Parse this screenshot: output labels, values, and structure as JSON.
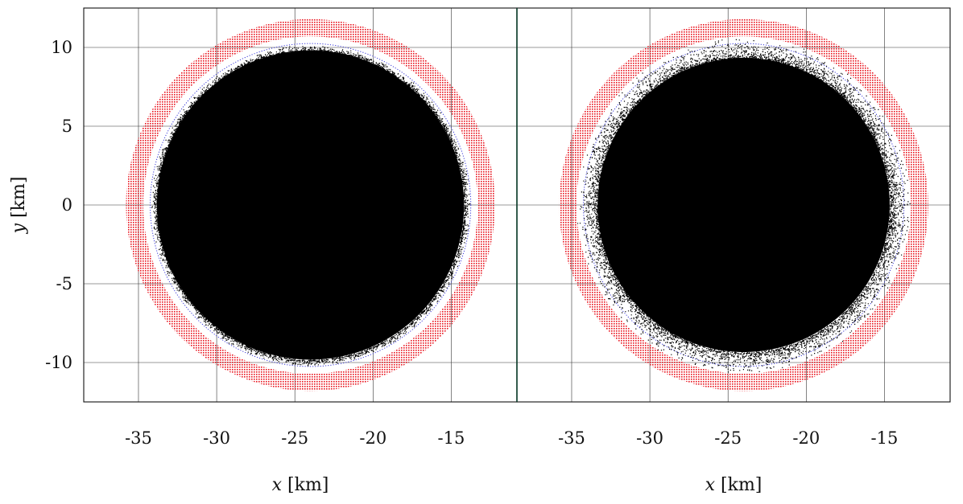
{
  "chart_data": [
    {
      "type": "scatter",
      "panel": "left",
      "xlabel_var": "x",
      "xlabel_unit": "[km]",
      "ylabel_var": "y",
      "ylabel_unit": "[km]",
      "xlim": [
        -38.5,
        -10.8
      ],
      "ylim": [
        -12.5,
        12.5
      ],
      "x_ticks": [
        {
          "value": -35,
          "label": "-35"
        },
        {
          "value": -30,
          "label": "-30"
        },
        {
          "value": -25,
          "label": "-25"
        },
        {
          "value": -20,
          "label": "-20"
        },
        {
          "value": -15,
          "label": "-15"
        }
      ],
      "y_ticks": [
        {
          "value": 10,
          "label": "10"
        },
        {
          "value": 5,
          "label": "5"
        },
        {
          "value": 0,
          "label": "0"
        },
        {
          "value": -5,
          "label": "-5"
        },
        {
          "value": -10,
          "label": "-10"
        }
      ],
      "grid": true,
      "series": [
        {
          "kind": "annulus",
          "color": "#e8141e",
          "center": [
            -24,
            0
          ],
          "inner_radius": 10.7,
          "outer_radius": 11.8
        },
        {
          "kind": "circle-dotted",
          "color": "#3a3ad8",
          "center": [
            -24,
            0
          ],
          "radius": 10.25
        },
        {
          "kind": "filled-disk",
          "color": "#000000",
          "center": [
            -24,
            0
          ],
          "radius": 10.0,
          "edge_spread": 0.15
        }
      ]
    },
    {
      "type": "scatter",
      "panel": "right",
      "xlabel_var": "x",
      "xlabel_unit": "[km]",
      "xlim": [
        -38.5,
        -10.8
      ],
      "ylim": [
        -12.5,
        12.5
      ],
      "x_ticks": [
        {
          "value": -35,
          "label": "-35"
        },
        {
          "value": -30,
          "label": "-30"
        },
        {
          "value": -25,
          "label": "-25"
        },
        {
          "value": -20,
          "label": "-20"
        },
        {
          "value": -15,
          "label": "-15"
        }
      ],
      "grid": true,
      "series": [
        {
          "kind": "annulus",
          "color": "#e8141e",
          "center": [
            -24,
            0
          ],
          "inner_radius": 10.7,
          "outer_radius": 11.8
        },
        {
          "kind": "circle-dotted",
          "color": "#3a3ad8",
          "center": [
            -24,
            0
          ],
          "radius": 10.25
        },
        {
          "kind": "filled-disk",
          "color": "#000000",
          "center": [
            -24,
            0
          ],
          "radius": 10.0,
          "edge_spread": 0.55
        }
      ]
    }
  ]
}
